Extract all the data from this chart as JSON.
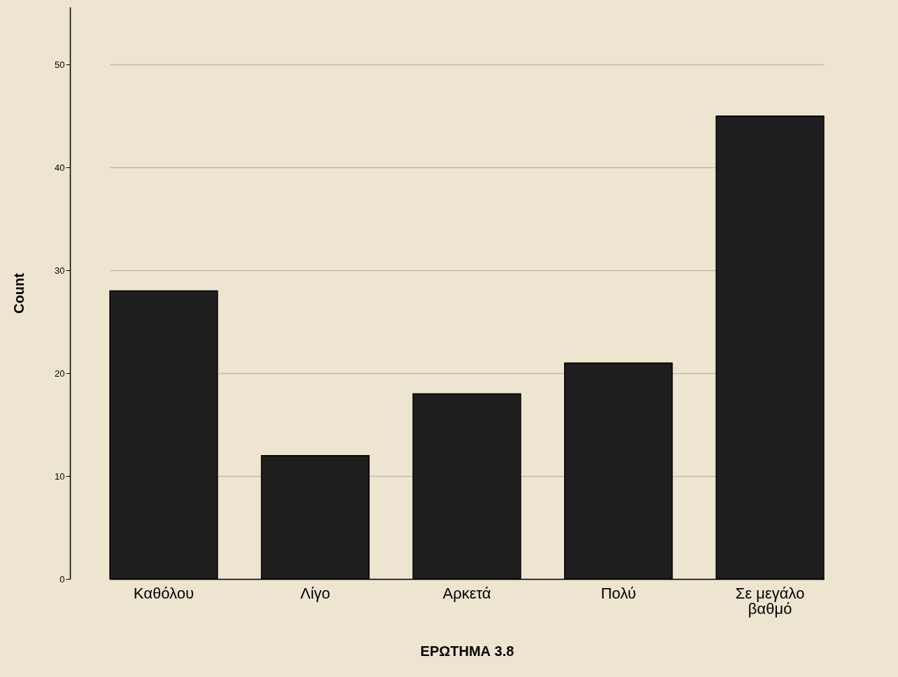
{
  "chart_data": {
    "type": "bar",
    "xlabel": "ΕΡΩΤΗΜΑ 3.8",
    "ylabel": "Count",
    "categories": [
      "Καθόλου",
      "Λίγο",
      "Αρκετά",
      "Πολύ",
      "Σε μεγάλο βαθμό"
    ],
    "values": [
      28,
      12,
      18,
      21,
      45
    ],
    "color": "#1e1e1e",
    "ylim": [
      0,
      55.6
    ],
    "yticks": [
      0,
      10,
      20,
      30,
      40,
      50
    ],
    "grid": "y"
  }
}
